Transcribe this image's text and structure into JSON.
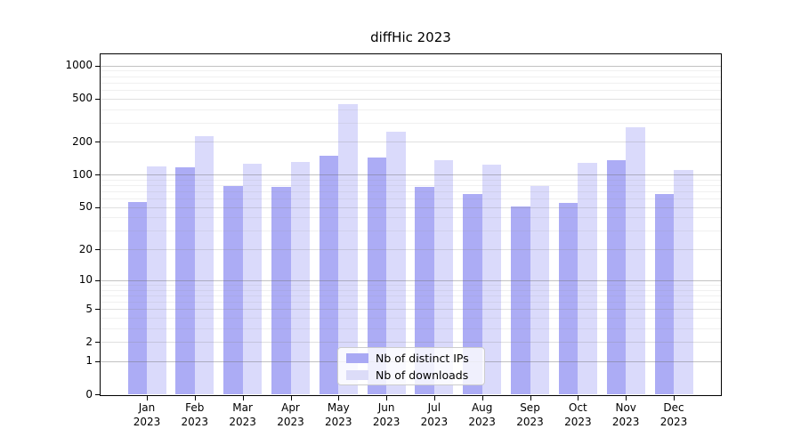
{
  "chart_data": {
    "type": "bar",
    "title": "diffHic 2023",
    "categories": [
      "Jan 2023",
      "Feb 2023",
      "Mar 2023",
      "Apr 2023",
      "May 2023",
      "Jun 2023",
      "Jul 2023",
      "Aug 2023",
      "Sep 2023",
      "Oct 2023",
      "Nov 2023",
      "Dec 2023"
    ],
    "months": [
      "Jan",
      "Feb",
      "Mar",
      "Apr",
      "May",
      "Jun",
      "Jul",
      "Aug",
      "Sep",
      "Oct",
      "Nov",
      "Dec"
    ],
    "year": "2023",
    "series": [
      {
        "name": "Nb of distinct IPs",
        "color": "#a9a9f4",
        "values": [
          56,
          117,
          78,
          77,
          150,
          145,
          77,
          66,
          51,
          55,
          135,
          66
        ]
      },
      {
        "name": "Nb of downloads",
        "color": "#dcdcf8",
        "values": [
          120,
          226,
          127,
          131,
          441,
          248,
          137,
          124,
          78,
          129,
          271,
          110
        ]
      }
    ],
    "xlabel": "",
    "ylabel": "",
    "yscale": "log1p",
    "ylim": [
      0,
      1270
    ],
    "yticks": [
      0,
      1,
      2,
      5,
      10,
      20,
      50,
      100,
      200,
      500,
      1000
    ],
    "minor_gridlines": [
      3,
      4,
      6,
      7,
      8,
      9,
      30,
      40,
      60,
      70,
      80,
      90,
      300,
      400,
      600,
      700,
      800,
      900
    ],
    "grid": true,
    "legend_position": "inside-bottom-center"
  }
}
